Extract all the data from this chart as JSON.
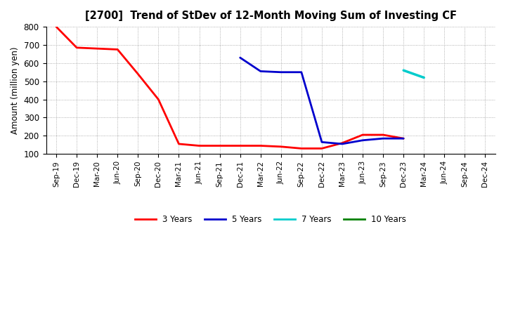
{
  "title": "[2700]  Trend of StDev of 12-Month Moving Sum of Investing CF",
  "ylabel": "Amount (million yen)",
  "ylim": [
    100,
    800
  ],
  "yticks": [
    100,
    200,
    300,
    400,
    500,
    600,
    700,
    800
  ],
  "background_color": "#ffffff",
  "series": {
    "3years": {
      "color": "#ff0000",
      "label": "3 Years",
      "x": [
        "Sep-19",
        "Dec-19",
        "Mar-20",
        "Jun-20",
        "Sep-20",
        "Dec-20",
        "Mar-21",
        "Jun-21",
        "Sep-21",
        "Dec-21",
        "Mar-22",
        "Jun-22",
        "Sep-22",
        "Dec-22",
        "Mar-23",
        "Jun-23",
        "Sep-23",
        "Dec-23"
      ],
      "y": [
        800,
        685,
        680,
        675,
        540,
        400,
        155,
        145,
        145,
        145,
        145,
        140,
        130,
        130,
        160,
        205,
        205,
        185
      ]
    },
    "5years": {
      "color": "#0000cd",
      "label": "5 Years",
      "x": [
        "Dec-21",
        "Mar-22",
        "Jun-22",
        "Sep-22",
        "Dec-22",
        "Mar-23",
        "Jun-23",
        "Sep-23",
        "Dec-23"
      ],
      "y": [
        630,
        555,
        550,
        550,
        165,
        155,
        175,
        185,
        185
      ]
    },
    "7years": {
      "color": "#00cccc",
      "label": "7 Years",
      "x": [
        "Dec-23",
        "Mar-24"
      ],
      "y": [
        560,
        520
      ]
    },
    "10years": {
      "color": "#008000",
      "label": "10 Years",
      "x": [],
      "y": []
    }
  },
  "xticks": [
    "Sep-19",
    "Dec-19",
    "Mar-20",
    "Jun-20",
    "Sep-20",
    "Dec-20",
    "Mar-21",
    "Jun-21",
    "Sep-21",
    "Dec-21",
    "Mar-22",
    "Jun-22",
    "Sep-22",
    "Dec-22",
    "Mar-23",
    "Jun-23",
    "Sep-23",
    "Dec-23",
    "Mar-24",
    "Jun-24",
    "Sep-24",
    "Dec-24"
  ],
  "legend_labels": [
    "3 Years",
    "5 Years",
    "7 Years",
    "10 Years"
  ],
  "legend_colors": [
    "#ff0000",
    "#0000cd",
    "#00cccc",
    "#008000"
  ]
}
